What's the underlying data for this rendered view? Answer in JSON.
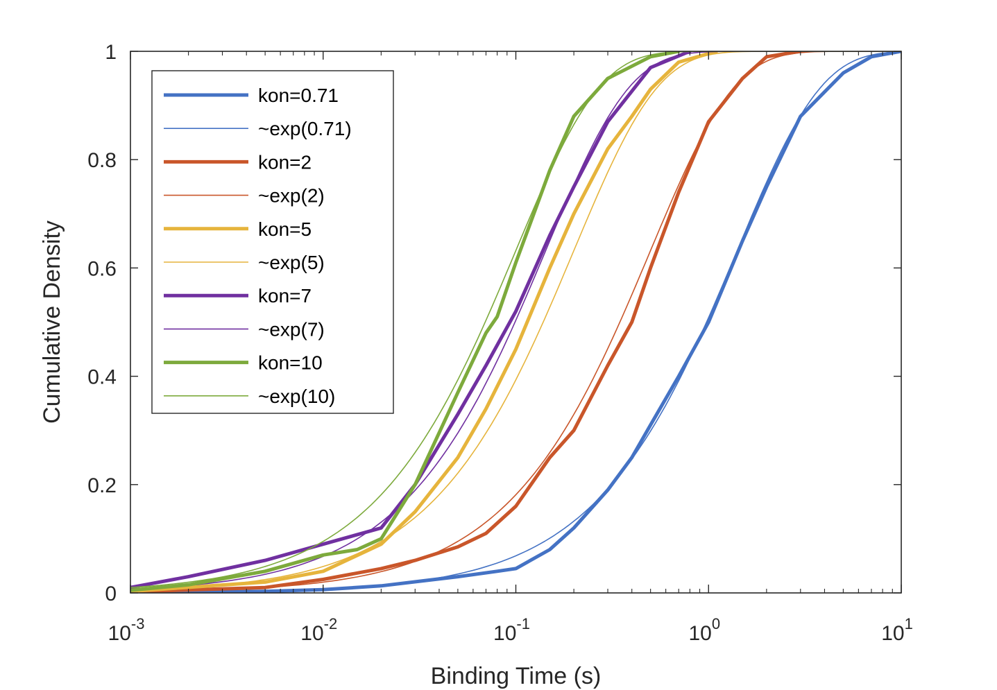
{
  "chart_data": {
    "type": "line",
    "xlabel": "Binding Time (s)",
    "ylabel": "Cumulative Density",
    "xscale": "log",
    "xlim": [
      0.001,
      10
    ],
    "ylim": [
      0,
      1
    ],
    "x_ticks": [
      {
        "value": 0.001,
        "base": "10",
        "exp": "-3"
      },
      {
        "value": 0.01,
        "base": "10",
        "exp": "-2"
      },
      {
        "value": 0.1,
        "base": "10",
        "exp": "-1"
      },
      {
        "value": 1,
        "base": "10",
        "exp": "0"
      },
      {
        "value": 10,
        "base": "10",
        "exp": "1"
      }
    ],
    "y_ticks": [
      {
        "value": 0,
        "label": "0"
      },
      {
        "value": 0.2,
        "label": "0.2"
      },
      {
        "value": 0.4,
        "label": "0.4"
      },
      {
        "value": 0.6,
        "label": "0.6"
      },
      {
        "value": 0.8,
        "label": "0.8"
      },
      {
        "value": 1,
        "label": "1"
      }
    ],
    "grid": false,
    "legend_position": "top-left",
    "series": [
      {
        "name": "kon=0.71",
        "kind": "empirical",
        "color": "#4472C4",
        "x": [
          0.001,
          0.005,
          0.01,
          0.02,
          0.05,
          0.08,
          0.1,
          0.15,
          0.2,
          0.3,
          0.4,
          0.5,
          0.7,
          1.0,
          1.5,
          2.0,
          3.0,
          5.0,
          7.0,
          10.0
        ],
        "y": [
          0.0,
          0.003,
          0.006,
          0.013,
          0.03,
          0.04,
          0.045,
          0.08,
          0.12,
          0.19,
          0.25,
          0.31,
          0.4,
          0.5,
          0.65,
          0.75,
          0.88,
          0.96,
          0.99,
          1.0
        ]
      },
      {
        "name": "~exp(0.71)",
        "kind": "fit",
        "color": "#4472C4",
        "rate": 0.71
      },
      {
        "name": "kon=2",
        "kind": "empirical",
        "color": "#C9562A",
        "x": [
          0.001,
          0.005,
          0.01,
          0.02,
          0.03,
          0.05,
          0.07,
          0.1,
          0.15,
          0.2,
          0.3,
          0.4,
          0.5,
          0.7,
          1.0,
          1.5,
          2.0,
          3.0
        ],
        "y": [
          0.002,
          0.01,
          0.025,
          0.045,
          0.06,
          0.085,
          0.11,
          0.16,
          0.25,
          0.3,
          0.42,
          0.5,
          0.6,
          0.74,
          0.87,
          0.95,
          0.99,
          1.0
        ]
      },
      {
        "name": "~exp(2)",
        "kind": "fit",
        "color": "#C9562A",
        "rate": 2
      },
      {
        "name": "kon=5",
        "kind": "empirical",
        "color": "#E6B43C",
        "x": [
          0.001,
          0.005,
          0.01,
          0.02,
          0.03,
          0.05,
          0.07,
          0.1,
          0.15,
          0.2,
          0.3,
          0.4,
          0.5,
          0.7,
          1.1
        ],
        "y": [
          0.003,
          0.02,
          0.04,
          0.09,
          0.15,
          0.25,
          0.34,
          0.45,
          0.6,
          0.7,
          0.82,
          0.88,
          0.93,
          0.98,
          1.0
        ]
      },
      {
        "name": "~exp(5)",
        "kind": "fit",
        "color": "#E6B43C",
        "rate": 5
      },
      {
        "name": "kon=7",
        "kind": "empirical",
        "color": "#7030A0",
        "x": [
          0.001,
          0.002,
          0.005,
          0.01,
          0.02,
          0.03,
          0.05,
          0.07,
          0.1,
          0.15,
          0.2,
          0.3,
          0.5,
          0.8
        ],
        "y": [
          0.01,
          0.03,
          0.06,
          0.09,
          0.12,
          0.2,
          0.33,
          0.42,
          0.52,
          0.66,
          0.75,
          0.87,
          0.97,
          1.0
        ]
      },
      {
        "name": "~exp(7)",
        "kind": "fit",
        "color": "#7030A0",
        "rate": 7
      },
      {
        "name": "kon=10",
        "kind": "empirical",
        "color": "#7DAA3C",
        "x": [
          0.001,
          0.002,
          0.005,
          0.01,
          0.015,
          0.02,
          0.03,
          0.05,
          0.07,
          0.08,
          0.1,
          0.15,
          0.2,
          0.3,
          0.5,
          0.7
        ],
        "y": [
          0.005,
          0.015,
          0.04,
          0.07,
          0.08,
          0.1,
          0.2,
          0.37,
          0.48,
          0.51,
          0.61,
          0.78,
          0.88,
          0.95,
          0.99,
          1.0
        ]
      },
      {
        "name": "~exp(10)",
        "kind": "fit",
        "color": "#7DAA3C",
        "rate": 10
      }
    ]
  }
}
